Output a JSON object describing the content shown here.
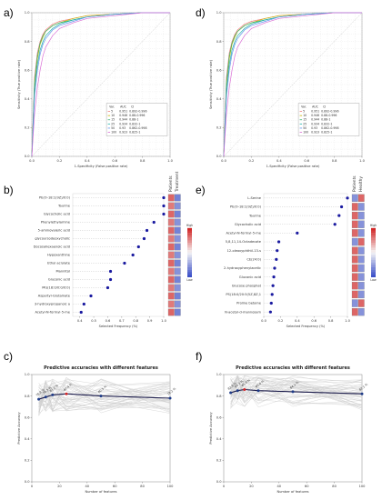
{
  "panel_labels": [
    "a)",
    "b)",
    "c)",
    "d)",
    "e)",
    "f)"
  ],
  "chart_data": [
    {
      "panel": "a)",
      "type": "line",
      "xlabel": "1-Specificity (False positive rate)",
      "ylabel": "Sensitivity (True positive rate)",
      "xlim": [
        0,
        1
      ],
      "ylim": [
        0,
        1
      ],
      "xticks": [
        "0.0",
        "0.2",
        "0.4",
        "0.6",
        "0.8",
        "1.0"
      ],
      "yticks": [
        "0.0",
        "0.2",
        "0.4",
        "0.6",
        "0.8",
        "1.0"
      ],
      "grid": true,
      "legend_position": "bottom-right",
      "legend_header": [
        "Var.",
        "AUC",
        "CI"
      ],
      "series": [
        {
          "name": "5",
          "auc": "0.951",
          "ci": "0.892-0.996",
          "color": "#f08080",
          "x": [
            0,
            0.02,
            0.04,
            0.06,
            0.08,
            0.1,
            0.15,
            0.2,
            0.3,
            0.4,
            0.6,
            0.8,
            1.0
          ],
          "y": [
            0,
            0.55,
            0.72,
            0.8,
            0.85,
            0.88,
            0.92,
            0.94,
            0.96,
            0.98,
            0.99,
            1.0,
            1.0
          ]
        },
        {
          "name": "10",
          "auc": "0.946",
          "ci": "0.88-0.996",
          "color": "#c8b400",
          "x": [
            0,
            0.02,
            0.04,
            0.06,
            0.08,
            0.1,
            0.15,
            0.2,
            0.3,
            0.4,
            0.6,
            0.8,
            1.0
          ],
          "y": [
            0,
            0.5,
            0.68,
            0.78,
            0.83,
            0.87,
            0.91,
            0.93,
            0.96,
            0.98,
            0.99,
            1.0,
            1.0
          ]
        },
        {
          "name": "15",
          "auc": "0.944",
          "ci": "0.88-1",
          "color": "#3cb371",
          "x": [
            0,
            0.02,
            0.04,
            0.06,
            0.08,
            0.1,
            0.15,
            0.2,
            0.3,
            0.4,
            0.6,
            0.8,
            1.0
          ],
          "y": [
            0,
            0.52,
            0.7,
            0.79,
            0.84,
            0.87,
            0.91,
            0.93,
            0.95,
            0.97,
            0.99,
            1.0,
            1.0
          ]
        },
        {
          "name": "25",
          "auc": "0.934",
          "ci": "0.832-1",
          "color": "#20b2aa",
          "x": [
            0,
            0.02,
            0.04,
            0.06,
            0.08,
            0.1,
            0.15,
            0.2,
            0.3,
            0.4,
            0.6,
            0.8,
            1.0
          ],
          "y": [
            0,
            0.45,
            0.64,
            0.74,
            0.8,
            0.84,
            0.89,
            0.92,
            0.95,
            0.97,
            0.99,
            1.0,
            1.0
          ]
        },
        {
          "name": "50",
          "auc": "0.93",
          "ci": "0.862-0.998",
          "color": "#6495ed",
          "x": [
            0,
            0.02,
            0.04,
            0.06,
            0.08,
            0.1,
            0.15,
            0.2,
            0.3,
            0.4,
            0.6,
            0.8,
            1.0
          ],
          "y": [
            0,
            0.42,
            0.6,
            0.71,
            0.78,
            0.82,
            0.88,
            0.91,
            0.94,
            0.97,
            0.99,
            1.0,
            1.0
          ]
        },
        {
          "name": "100",
          "auc": "0.923",
          "ci": "0.825-1",
          "color": "#da70d6",
          "x": [
            0,
            0.02,
            0.04,
            0.06,
            0.08,
            0.1,
            0.15,
            0.2,
            0.3,
            0.4,
            0.6,
            0.8,
            1.0
          ],
          "y": [
            0,
            0.3,
            0.48,
            0.6,
            0.7,
            0.76,
            0.84,
            0.89,
            0.93,
            0.96,
            0.98,
            1.0,
            1.0
          ]
        }
      ]
    },
    {
      "panel": "d)",
      "type": "line",
      "xlabel": "1-Specificity (False positive rate)",
      "ylabel": "Sensitivity (True positive rate)",
      "xlim": [
        0,
        1
      ],
      "ylim": [
        0,
        1
      ],
      "xticks": [
        "0.0",
        "0.2",
        "0.4",
        "0.6",
        "0.8",
        "1.0"
      ],
      "yticks": [
        "0.0",
        "0.2",
        "0.4",
        "0.6",
        "0.8",
        "1.0"
      ],
      "grid": true,
      "legend_position": "bottom-right",
      "legend_header": [
        "Var.",
        "AUC",
        "CI"
      ],
      "series": [
        {
          "name": "5",
          "auc": "0.951",
          "ci": "0.892-0.996",
          "color": "#f08080",
          "x": [
            0,
            0.02,
            0.04,
            0.06,
            0.08,
            0.1,
            0.15,
            0.2,
            0.3,
            0.4,
            0.6,
            0.8,
            1.0
          ],
          "y": [
            0,
            0.55,
            0.72,
            0.8,
            0.85,
            0.88,
            0.92,
            0.94,
            0.96,
            0.98,
            0.99,
            1.0,
            1.0
          ]
        },
        {
          "name": "10",
          "auc": "0.946",
          "ci": "0.88-0.996",
          "color": "#c8b400",
          "x": [
            0,
            0.02,
            0.04,
            0.06,
            0.08,
            0.1,
            0.15,
            0.2,
            0.3,
            0.4,
            0.6,
            0.8,
            1.0
          ],
          "y": [
            0,
            0.5,
            0.68,
            0.78,
            0.83,
            0.87,
            0.91,
            0.93,
            0.96,
            0.98,
            0.99,
            1.0,
            1.0
          ]
        },
        {
          "name": "15",
          "auc": "0.944",
          "ci": "0.88-1",
          "color": "#3cb371",
          "x": [
            0,
            0.02,
            0.04,
            0.06,
            0.08,
            0.1,
            0.15,
            0.2,
            0.3,
            0.4,
            0.6,
            0.8,
            1.0
          ],
          "y": [
            0,
            0.52,
            0.7,
            0.79,
            0.84,
            0.87,
            0.91,
            0.93,
            0.95,
            0.97,
            0.99,
            1.0,
            1.0
          ]
        },
        {
          "name": "25",
          "auc": "0.934",
          "ci": "0.832-1",
          "color": "#20b2aa",
          "x": [
            0,
            0.02,
            0.04,
            0.06,
            0.08,
            0.1,
            0.15,
            0.2,
            0.3,
            0.4,
            0.6,
            0.8,
            1.0
          ],
          "y": [
            0,
            0.45,
            0.64,
            0.74,
            0.8,
            0.84,
            0.89,
            0.92,
            0.95,
            0.97,
            0.99,
            1.0,
            1.0
          ]
        },
        {
          "name": "50",
          "auc": "0.93",
          "ci": "0.862-0.998",
          "color": "#6495ed",
          "x": [
            0,
            0.02,
            0.04,
            0.06,
            0.08,
            0.1,
            0.15,
            0.2,
            0.3,
            0.4,
            0.6,
            0.8,
            1.0
          ],
          "y": [
            0,
            0.42,
            0.6,
            0.71,
            0.78,
            0.82,
            0.88,
            0.91,
            0.94,
            0.97,
            0.99,
            1.0,
            1.0
          ]
        },
        {
          "name": "100",
          "auc": "0.923",
          "ci": "0.825-1",
          "color": "#da70d6",
          "x": [
            0,
            0.02,
            0.04,
            0.06,
            0.08,
            0.1,
            0.15,
            0.2,
            0.3,
            0.4,
            0.6,
            0.8,
            1.0
          ],
          "y": [
            0,
            0.3,
            0.48,
            0.6,
            0.7,
            0.76,
            0.84,
            0.89,
            0.93,
            0.96,
            0.98,
            1.0,
            1.0
          ]
        }
      ]
    },
    {
      "panel": "b)",
      "type": "scatter",
      "xlabel": "Selected Frequency (%)",
      "xlim": [
        0.35,
        1.0
      ],
      "xticks": [
        "0.4",
        "0.5",
        "0.6",
        "0.7",
        "0.8",
        "0.9",
        "1.0"
      ],
      "side_labels": [
        "Patients",
        "Treatment"
      ],
      "colorbar": {
        "high": "High",
        "low": "Low"
      },
      "categories": [
        "PE(O-18:1(9Z)/0:0)",
        "Taurine",
        "Glycocholic acid",
        "Phenylethylamine",
        "5-aminovaleric acid",
        "glycoursodeoxycholic",
        "Docosahexaenoic acid",
        "Hypoxanthine",
        "Ethyl acrylate",
        "Mannitol",
        "Gluconic acid",
        "MG(18:0/0:0/0:0)",
        "Aspartyl-Glutamate",
        "3-hydroxypropanoic a",
        "Acetyl-N-formyl-5-me"
      ],
      "values": [
        1.0,
        1.0,
        1.0,
        0.93,
        0.88,
        0.86,
        0.82,
        0.78,
        0.72,
        0.62,
        0.62,
        0.6,
        0.48,
        0.43,
        0.41
      ],
      "heat": [
        [
          0.85,
          0.15
        ],
        [
          0.8,
          0.2
        ],
        [
          0.85,
          0.15
        ],
        [
          0.8,
          0.2
        ],
        [
          0.85,
          0.15
        ],
        [
          0.8,
          0.2
        ],
        [
          0.85,
          0.15
        ],
        [
          0.8,
          0.2
        ],
        [
          0.85,
          0.15
        ],
        [
          0.8,
          0.2
        ],
        [
          0.85,
          0.15
        ],
        [
          0.8,
          0.2
        ],
        [
          0.85,
          0.15
        ],
        [
          0.8,
          0.2
        ],
        [
          0.85,
          0.15
        ]
      ]
    },
    {
      "panel": "e)",
      "type": "scatter",
      "xlabel": "Selected Frequency (%)",
      "xlim": [
        0,
        1.0
      ],
      "xticks": [
        "0.0",
        "0.2",
        "0.4",
        "0.6",
        "0.8",
        "1.0"
      ],
      "side_labels": [
        "Patients",
        "Healthy"
      ],
      "colorbar": {
        "high": "High",
        "low": "Low"
      },
      "categories": [
        "L-Serine",
        "PE(O-18:1(9Z)/0:0)",
        "Taurine",
        "Glycocholic acid",
        "Acetyl-N-formyl-5-me",
        "5,8,11,14-Octadecate",
        "12-oleoxyphthtl-13-s",
        "CE(24:0)",
        "2-hydroxyphenylacetic",
        "Gluconic acid",
        "Glucose phosphat",
        "PS(18:0/20:5(5Z,8Z,1",
        "Proline betaine",
        "N-acetyl-d-mannosam"
      ],
      "values": [
        1.0,
        0.93,
        0.9,
        0.85,
        0.4,
        0.18,
        0.16,
        0.15,
        0.13,
        0.12,
        0.11,
        0.1,
        0.09,
        0.08
      ],
      "heat": [
        [
          0.2,
          0.85
        ],
        [
          0.85,
          0.2
        ],
        [
          0.85,
          0.2
        ],
        [
          0.85,
          0.2
        ],
        [
          0.85,
          0.2
        ],
        [
          0.2,
          0.85
        ],
        [
          0.85,
          0.2
        ],
        [
          0.85,
          0.2
        ],
        [
          0.85,
          0.2
        ],
        [
          0.85,
          0.2
        ],
        [
          0.85,
          0.2
        ],
        [
          0.85,
          0.2
        ],
        [
          0.2,
          0.85
        ],
        [
          0.85,
          0.2
        ]
      ]
    },
    {
      "panel": "c)",
      "type": "line",
      "title": "Predictive accuracies with different features",
      "xlabel": "Number of features",
      "ylabel": "Predictive Accuracy",
      "xlim": [
        0,
        100
      ],
      "ylim": [
        0,
        1
      ],
      "xticks": [
        "0",
        "20",
        "40",
        "60",
        "80",
        "100"
      ],
      "yticks": [
        "0.0",
        "0.2",
        "0.4",
        "0.6",
        "0.8",
        "1.0"
      ],
      "points_x": [
        5,
        10,
        15,
        25,
        50,
        100
      ],
      "points_y": [
        0.77,
        0.79,
        0.81,
        0.82,
        0.8,
        0.78
      ],
      "point_labels": [
        "76.8 %",
        "78.5 %",
        "81.2 %",
        "82.4 %",
        "80.5 %",
        "78.2 %"
      ],
      "highlight_index": 3
    },
    {
      "panel": "f)",
      "type": "line",
      "title": "Predictive accuracies with different features",
      "xlabel": "Number of features",
      "ylabel": "Predictive Accuracy",
      "xlim": [
        0,
        100
      ],
      "ylim": [
        0,
        1
      ],
      "xticks": [
        "0",
        "20",
        "40",
        "60",
        "80",
        "100"
      ],
      "yticks": [
        "0.0",
        "0.2",
        "0.4",
        "0.6",
        "0.8",
        "1.0"
      ],
      "points_x": [
        5,
        10,
        15,
        25,
        50,
        100
      ],
      "points_y": [
        0.83,
        0.85,
        0.86,
        0.85,
        0.84,
        0.82
      ],
      "point_labels": [
        "82.6 %",
        "84.7 %",
        "85.8 %",
        "85.4 %",
        "84.2 %",
        "82.1 %"
      ],
      "highlight_index": 2
    }
  ]
}
